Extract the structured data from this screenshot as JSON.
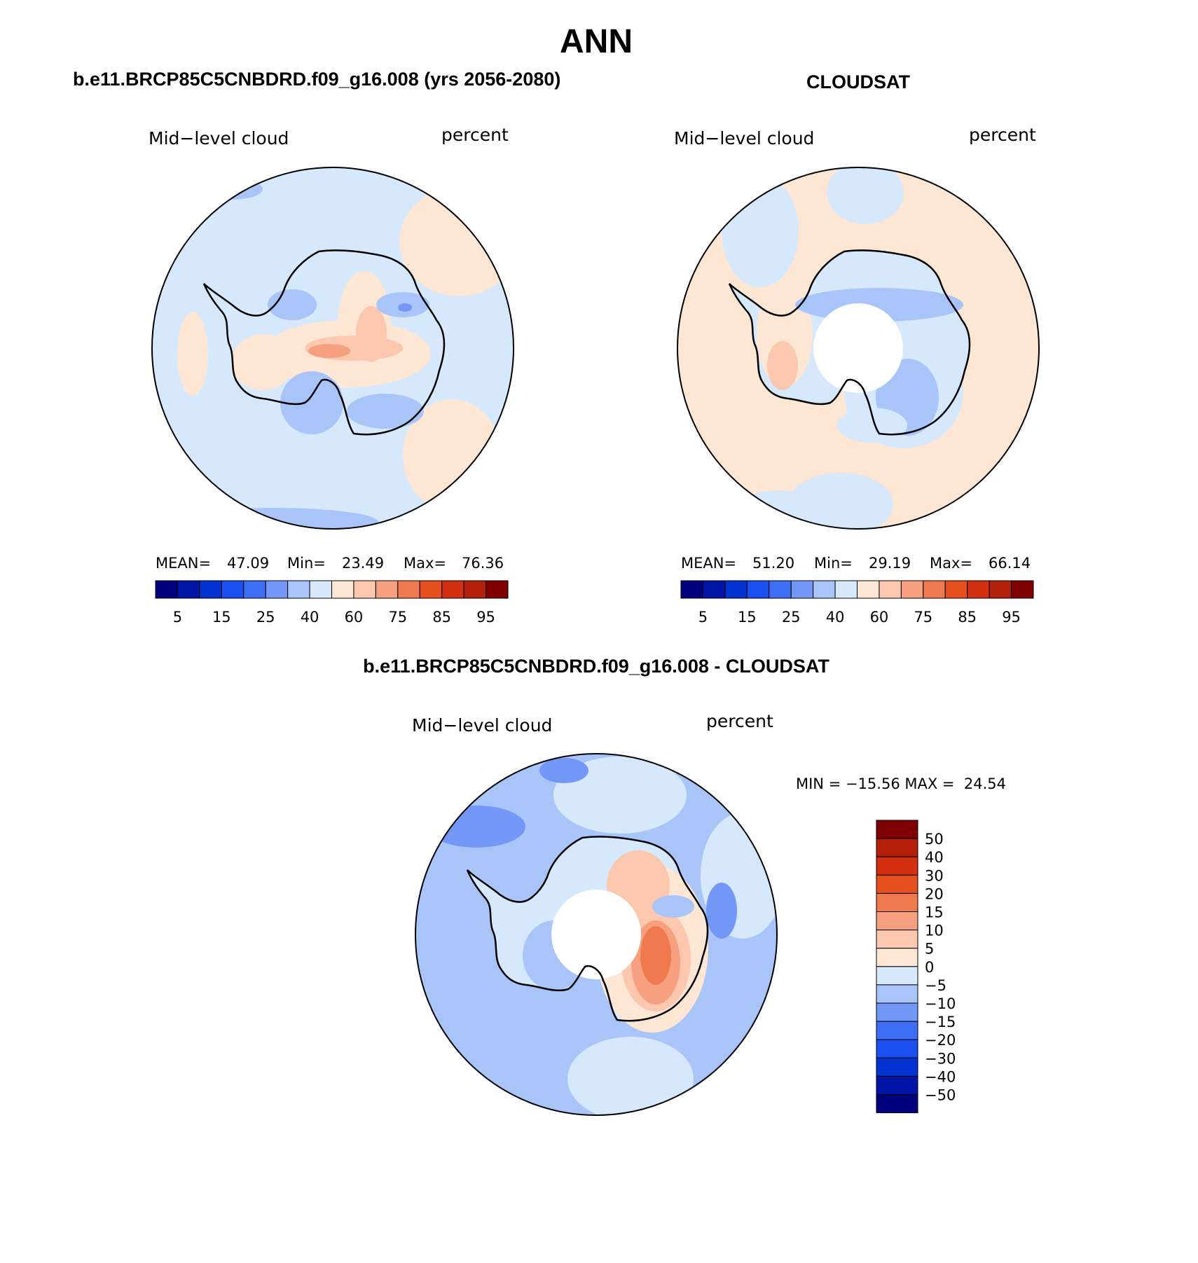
{
  "title": "ANN",
  "colors": {
    "scale": [
      "#00007f",
      "#0014a6",
      "#0432d0",
      "#1a4ff2",
      "#3d6ef5",
      "#7397f7",
      "#a8c4f9",
      "#d6e8fb",
      "#fde6d4",
      "#fbc7ae",
      "#f6a07f",
      "#f07a50",
      "#e6501f",
      "#d23010",
      "#b31f0a",
      "#7e0000"
    ],
    "coast": "#000000"
  },
  "panels": [
    {
      "id": "model",
      "header": "b.e11.BRCP85C5CNBDRD.f09_g16.008 (yrs 2056-2080)",
      "variable": "Mid−level cloud",
      "units": "percent",
      "stats": {
        "mean_label": "MEAN=",
        "mean": "47.09",
        "min_label": "Min=",
        "min": "23.49",
        "max_label": "Max=",
        "max": "76.36"
      },
      "pole_hole": false,
      "colorbar_ticks": [
        "5",
        "15",
        "25",
        "40",
        "60",
        "75",
        "85",
        "95"
      ]
    },
    {
      "id": "obs",
      "header": "CLOUDSAT",
      "variable": "Mid−level cloud",
      "units": "percent",
      "stats": {
        "mean_label": "MEAN=",
        "mean": "51.20",
        "min_label": "Min=",
        "min": "29.19",
        "max_label": "Max=",
        "max": "66.14"
      },
      "pole_hole": true,
      "colorbar_ticks": [
        "5",
        "15",
        "25",
        "40",
        "60",
        "75",
        "85",
        "95"
      ]
    },
    {
      "id": "diff",
      "header": "b.e11.BRCP85C5CNBDRD.f09_g16.008 - CLOUDSAT",
      "variable": "Mid−level cloud",
      "units": "percent",
      "minmax_text": "MIN = −15.56 MAX =  24.54",
      "pole_hole": true,
      "colorbar_levels": [
        "50",
        "40",
        "30",
        "20",
        "15",
        "10",
        "5",
        "0",
        "−5",
        "−10",
        "−15",
        "−20",
        "−30",
        "−40",
        "−50"
      ]
    }
  ]
}
